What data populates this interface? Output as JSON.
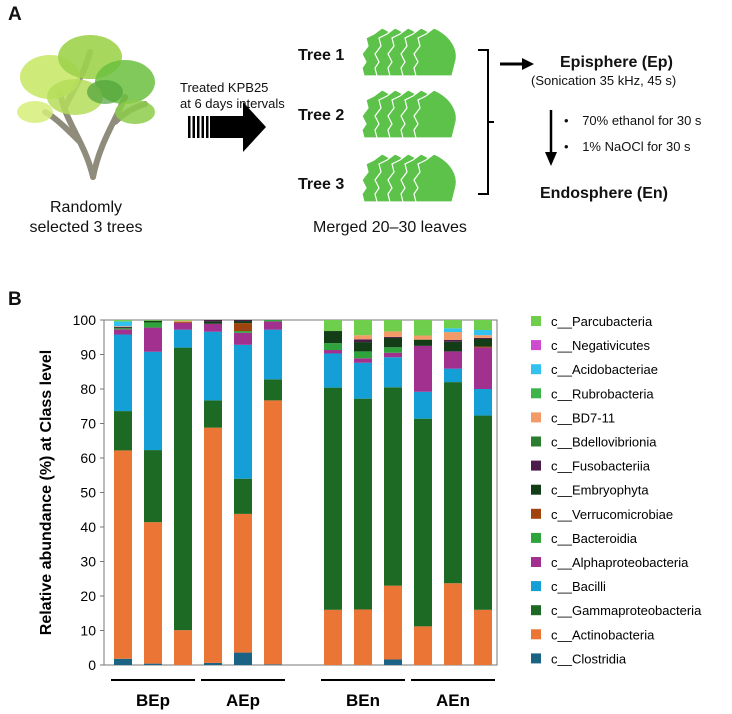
{
  "panel_a": {
    "label": "A",
    "tree_caption_line1": "Randomly",
    "tree_caption_line2": "selected 3 trees",
    "treatment_line1": "Treated KPB25",
    "treatment_line2": "at 6 days intervals",
    "trees": [
      "Tree 1",
      "Tree 2",
      "Tree 3"
    ],
    "leaves_caption": "Merged 20–30 leaves",
    "episphere": "Episphere (Ep)",
    "episphere_method": "(Sonication 35 kHz, 45 s)",
    "steps": [
      "70% ethanol for 30 s",
      "1% NaOCl for 30 s"
    ],
    "bullet": "•",
    "endosphere": "Endosphere (En)",
    "colors": {
      "leaf": "#5cc24a",
      "arrow": "#000000"
    }
  },
  "panel_b": {
    "label": "B"
  },
  "chart_data": {
    "type": "bar",
    "stacked": true,
    "ylabel": "Relative abundance (%) at Class level",
    "ylim": [
      0,
      100
    ],
    "yticks": [
      "0",
      "10",
      "20",
      "30",
      "40",
      "50",
      "60",
      "70",
      "80",
      "90",
      "100"
    ],
    "grid": false,
    "legend_placement": "right",
    "groups": [
      {
        "label": "BEp",
        "bars": [
          0,
          1,
          2
        ]
      },
      {
        "label": "AEp",
        "bars": [
          3,
          4,
          5
        ]
      },
      {
        "label": "BEn",
        "bars": [
          6,
          7,
          8
        ]
      },
      {
        "label": "AEn",
        "bars": [
          9,
          10,
          11
        ]
      }
    ],
    "series": [
      {
        "name": "c__Clostridia",
        "color": "#1b6384",
        "values": [
          1.8,
          0.4,
          0,
          0.6,
          3.6,
          0.2,
          0,
          0,
          1.6,
          0,
          0,
          0
        ]
      },
      {
        "name": "c__Actinobacteria",
        "color": "#ea7535",
        "values": [
          60.4,
          41.0,
          10.1,
          68.2,
          40.2,
          76.5,
          16.0,
          16.1,
          21.4,
          11.2,
          23.7,
          16.0
        ]
      },
      {
        "name": "c__Gammaproteobacteria",
        "color": "#1d6a24",
        "values": [
          11.4,
          20.9,
          81.9,
          7.9,
          10.2,
          6.1,
          64.4,
          61.1,
          57.5,
          60.2,
          58.3,
          56.3
        ]
      },
      {
        "name": "c__Bacilli",
        "color": "#149fd6",
        "values": [
          22.2,
          28.5,
          5.2,
          19.9,
          38.8,
          14.4,
          9.9,
          10.4,
          8.7,
          7.8,
          3.9,
          7.7
        ]
      },
      {
        "name": "c__Alphaproteobacteria",
        "color": "#a1308f",
        "values": [
          1.5,
          7.0,
          2.0,
          2.3,
          3.5,
          2.4,
          1.0,
          1.3,
          1.3,
          13.3,
          5.0,
          12.0
        ]
      },
      {
        "name": "c__Bacteroidia",
        "color": "#2fa33c",
        "values": [
          0.3,
          1.5,
          0,
          0,
          0.5,
          0.4,
          2.0,
          2.0,
          1.6,
          0,
          0,
          0
        ]
      },
      {
        "name": "c__Verrucomicrobiae",
        "color": "#a1430f",
        "values": [
          0,
          0,
          0.3,
          0,
          2.3,
          0,
          0,
          0,
          0,
          0,
          0,
          0.3
        ]
      },
      {
        "name": "c__Embryophyta",
        "color": "#123d17",
        "values": [
          0.2,
          0.5,
          0,
          0.7,
          0.6,
          0,
          3.5,
          2.7,
          2.7,
          1.8,
          2.8,
          2.2
        ]
      },
      {
        "name": "c__Fusobacteriia",
        "color": "#4b1c49",
        "values": [
          0.2,
          0,
          0,
          0.4,
          0.3,
          0,
          0,
          0.8,
          0.3,
          0,
          0.5,
          0.3
        ]
      },
      {
        "name": "c__Bdellovibrionia",
        "color": "#2b7d2f",
        "values": [
          0,
          0,
          0,
          0,
          0,
          0,
          0,
          0,
          0,
          0,
          0,
          0
        ]
      },
      {
        "name": "c__BD7-11",
        "color": "#f29a68",
        "values": [
          0.2,
          0,
          0.3,
          0,
          0,
          0,
          0,
          1.2,
          1.6,
          1.2,
          2.3,
          0.8
        ]
      },
      {
        "name": "c__Rubrobacteria",
        "color": "#3cb44a",
        "values": [
          0,
          0,
          0,
          0,
          0,
          0,
          0,
          0,
          0,
          0,
          0,
          0
        ]
      },
      {
        "name": "c__Acidobacteriae",
        "color": "#33c2ef",
        "values": [
          1.4,
          0,
          0,
          0,
          0,
          0,
          0,
          0,
          0,
          0,
          1.1,
          1.5
        ]
      },
      {
        "name": "c__Negativicutes",
        "color": "#d04ad0",
        "values": [
          0,
          0,
          0,
          0,
          0,
          0,
          0,
          0,
          0,
          0,
          0,
          0
        ]
      },
      {
        "name": "c__Parcubacteria",
        "color": "#6fcf4c",
        "values": [
          0.4,
          0.2,
          0.2,
          0,
          0,
          0,
          3.2,
          4.4,
          3.3,
          4.5,
          2.4,
          2.9
        ]
      }
    ]
  }
}
